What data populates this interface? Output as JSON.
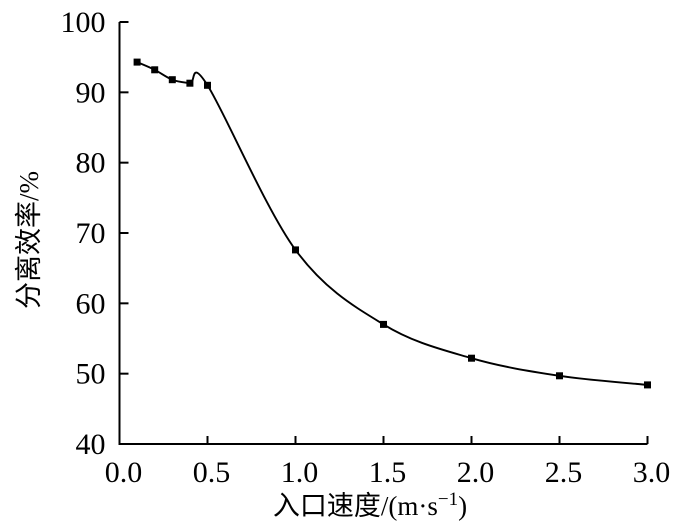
{
  "figure": {
    "background": "#ffffff",
    "ink_color": "#000000"
  },
  "chart_data": {
    "type": "line",
    "title": "",
    "xlabel": "入口速度/(m·s⁻¹)",
    "xlabel_parts": {
      "base": "入口速度/(m·s",
      "superscript": "−1",
      "close": ")"
    },
    "ylabel": "分离效率/%",
    "series": [
      {
        "name": "分离效率",
        "x": [
          0.1,
          0.2,
          0.3,
          0.4,
          0.5,
          1.0,
          1.5,
          2.0,
          2.5,
          3.0
        ],
        "y": [
          94.3,
          93.2,
          91.8,
          91.3,
          91.0,
          67.6,
          57.0,
          52.2,
          49.7,
          48.4
        ],
        "marker": "filled-square",
        "line_style": "solid-smooth",
        "color": "#000000"
      }
    ],
    "xlim": [
      0.0,
      3.0
    ],
    "ylim": [
      40,
      100
    ],
    "x_ticks": [
      0.0,
      0.5,
      1.0,
      1.5,
      2.0,
      2.5,
      3.0
    ],
    "x_tick_labels": [
      "0.0",
      "0.5",
      "1.0",
      "1.5",
      "2.0",
      "2.5",
      "3.0"
    ],
    "y_ticks": [
      40,
      50,
      60,
      70,
      80,
      90,
      100
    ],
    "y_tick_labels": [
      "40",
      "50",
      "60",
      "70",
      "80",
      "90",
      "100"
    ],
    "grid": false,
    "legend_position": "none",
    "axes_style": "left-bottom-spines-only, inward ticks"
  }
}
